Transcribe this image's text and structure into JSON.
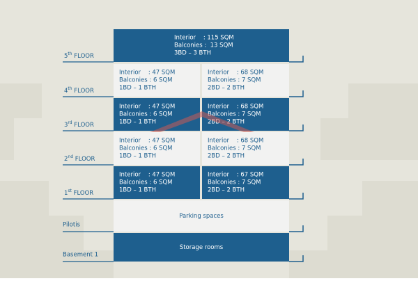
{
  "floors": [
    {
      "label": {
        "number": "5",
        "suffix": "th",
        "word": "FLOOR"
      },
      "units": [
        {
          "lines": [
            "Interior    : 115 SQM",
            "Balconies :  13 SQM",
            "3BD – 3 BTH"
          ]
        }
      ]
    },
    {
      "label": {
        "number": "4",
        "suffix": "th",
        "word": "FLOOR"
      },
      "units": [
        {
          "lines": [
            "Interior    : 47 SQM",
            "Balconies : 6 SQM",
            "1BD – 1 BTH"
          ]
        },
        {
          "lines": [
            "Interior    : 68 SQM",
            "Balconies : 7 SQM",
            "2BD – 2 BTH"
          ]
        }
      ]
    },
    {
      "label": {
        "number": "3",
        "suffix": "rd",
        "word": "FLOOR"
      },
      "units": [
        {
          "lines": [
            "Interior    : 47 SQM",
            "Balconies : 6 SQM",
            "1BD – 1 BTH"
          ]
        },
        {
          "lines": [
            "Interior    : 68 SQM",
            "Balconies : 7 SQM",
            "2BD – 2 BTH"
          ]
        }
      ]
    },
    {
      "label": {
        "number": "2",
        "suffix": "nd",
        "word": "FLOOR"
      },
      "units": [
        {
          "lines": [
            "Interior    : 47 SQM",
            "Balconies : 6 SQM",
            "1BD – 1 BTH"
          ]
        },
        {
          "lines": [
            "Interior    : 68 SQM",
            "Balconies : 7 SQM",
            "2BD – 2 BTH"
          ]
        }
      ]
    },
    {
      "label": {
        "number": "1",
        "suffix": "st",
        "word": "FLOOR"
      },
      "units": [
        {
          "lines": [
            "Interior    : 47 SQM",
            "Balconies : 6 SQM",
            "1BD – 1 BTH"
          ]
        },
        {
          "lines": [
            "Interior    : 67 SQM",
            "Balconies : 7 SQM",
            "2BD – 2 BTH"
          ]
        }
      ]
    }
  ],
  "pilotis": {
    "label": "Pilotis",
    "text": "Parking spaces"
  },
  "basement": {
    "label": "Basement 1",
    "text": "Storage rooms"
  }
}
